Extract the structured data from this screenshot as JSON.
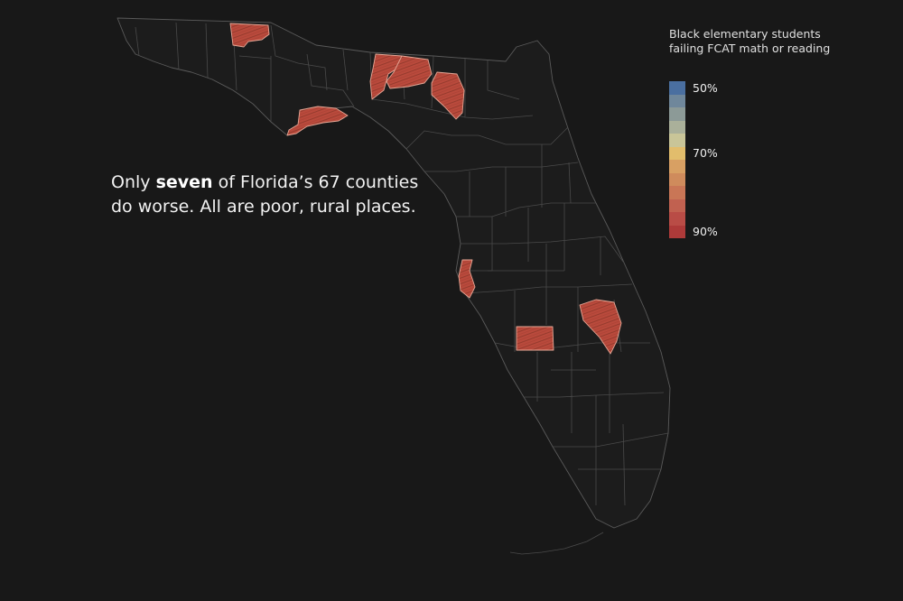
{
  "caption": {
    "pre": "Only ",
    "bold": "seven",
    "line1_post": " of Florida’s 67 counties",
    "line2": "do worse. All are poor, rural places."
  },
  "legend": {
    "title_line1": "Black elementary students",
    "title_line2": "failing FCAT math or reading",
    "colors": [
      "#4a6fa0",
      "#6f879b",
      "#8c9a97",
      "#aab09a",
      "#c9c598",
      "#e2bd6c",
      "#d8a063",
      "#cf8b5c",
      "#c97656",
      "#c16150",
      "#b94c46",
      "#ae3a39"
    ],
    "ticks": [
      {
        "label": "50%",
        "index": 0
      },
      {
        "label": "70%",
        "index": 5
      },
      {
        "label": "90%",
        "index": 11
      }
    ]
  },
  "map": {
    "highlight_color": "#b94a3c",
    "highlighted_county_count": 7
  }
}
